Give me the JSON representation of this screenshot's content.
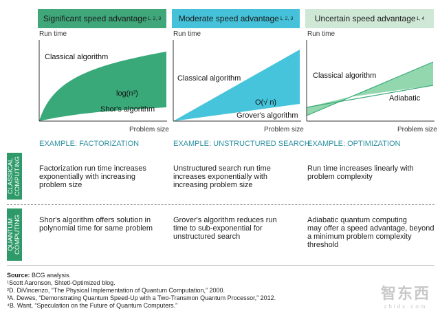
{
  "colors": {
    "green_header": "#3fa77a",
    "blue_header": "#45c2d9",
    "light_green_header": "#cfe8d6",
    "green_fill": "#3aa97a",
    "blue_fill": "#46c4dc",
    "light_green_fill": "#7fd0a0",
    "example_text": "#2b8fa0",
    "classical_box": "#2e9a6a",
    "quantum_box": "#2e9a6a"
  },
  "columns": [
    {
      "header": "Significant speed advantage",
      "header_refs": "1, 2, 3",
      "y_axis": "Run time",
      "x_axis": "Problem size",
      "curve_labels": [
        "Classical algorithm",
        "log(n³)",
        "Shor's algorithm"
      ],
      "example": "EXAMPLE: FACTORIZATION",
      "classical_desc": "Factorization run time increases\nexponentially with increasing\nproblem size",
      "quantum_desc": "Shor's algorithm offers solution in\npolynomial time for same problem"
    },
    {
      "header": "Moderate speed advantage",
      "header_refs": "1, 2, 3",
      "y_axis": "Run time",
      "x_axis": "Problem size",
      "curve_labels": [
        "Classical algorithm",
        "O(√ n)",
        "Grover's algorithm"
      ],
      "example": "EXAMPLE: UNSTRUCTURED SEARCH",
      "classical_desc": "Unstructured search run time\nincreases exponentially with\nincreasing problem size",
      "quantum_desc": "Grover's algorithm reduces run\ntime to sub-exponential for\nunstructured search"
    },
    {
      "header": "Uncertain speed advantage",
      "header_refs": "1, 4",
      "y_axis": "Run time",
      "x_axis": "Problem size",
      "curve_labels": [
        "Classical algorithm",
        "Adiabatic"
      ],
      "example": "EXAMPLE: OPTIMIZATION",
      "classical_desc": "Run time increases linearly with\nproblem complexity",
      "quantum_desc": "Adiabatic quantum computing\nmay offer a speed advantage, beyond\na minimum problem complexity\nthreshold"
    }
  ],
  "side_labels": {
    "classical": "CLASSICAL\nCOMPUTING",
    "quantum": "QUANTUM\nCOMPUTING"
  },
  "footnotes": {
    "source_label": "Source:",
    "source_text": " BCG analysis.",
    "notes": [
      "¹Scott Aaronson, Shtetl-Optimized blog.",
      "²D. DiVincenzo, “The Physical Implementation of Quantum Computation,” 2000.",
      "³A. Dewes, “Demonstrating Quantum Speed-Up with a Two-Transmon Quantum Processor,” 2012.",
      "⁴B. Want, “Speculation on the Future of Quantum Computers.”"
    ]
  },
  "watermark": {
    "cn": "智东西",
    "en": "zhidx.com"
  }
}
